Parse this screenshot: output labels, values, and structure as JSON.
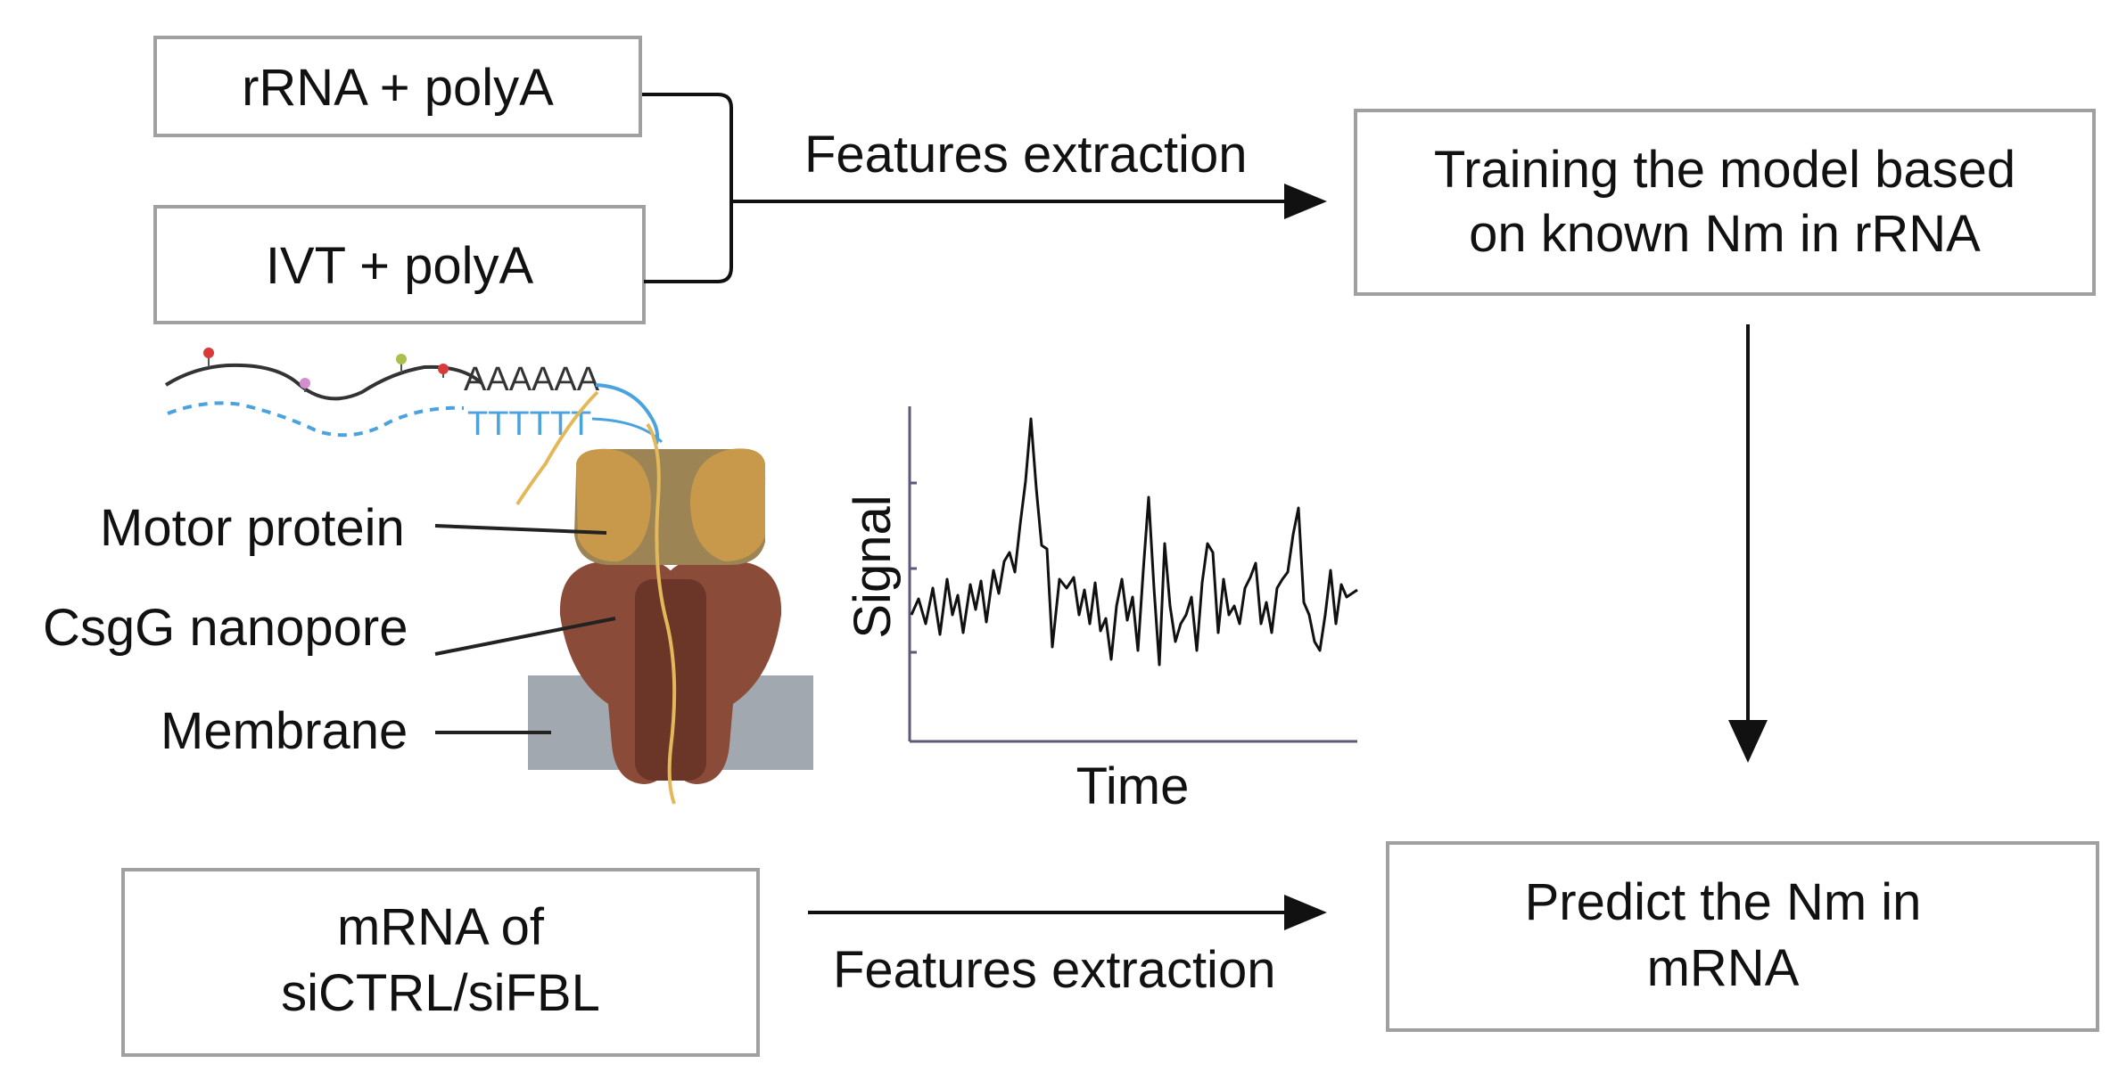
{
  "boxes": {
    "rrna": "rRNA + polyA",
    "ivt": "IVT + polyA",
    "training": [
      "Training the model based",
      "on known Nm in rRNA"
    ],
    "mrna": [
      "mRNA of",
      "siCTRL/siFBL"
    ],
    "predict": [
      "Predict the Nm in",
      "mRNA"
    ]
  },
  "arrows": {
    "top_label": "Features extraction",
    "bottom_label": "Features extraction"
  },
  "nanopore": {
    "poly_a": "AAAAAA",
    "poly_t": "TTTTTT",
    "labels": {
      "motor": "Motor protein",
      "pore": "CsgG nanopore",
      "membrane": "Membrane"
    }
  },
  "signal_plot": {
    "ylabel": "Signal",
    "xlabel": "Time"
  },
  "colors": {
    "box_border": "#a0a0a0",
    "motor_protein": "#c9994b",
    "nanopore": "#8a4b39",
    "membrane": "#a1a8b0",
    "rna_strand": "#333333",
    "dna_strand": "#4aa3df",
    "yellow_strand": "#e3b85a",
    "signal_axis": "#5a5a7a"
  }
}
